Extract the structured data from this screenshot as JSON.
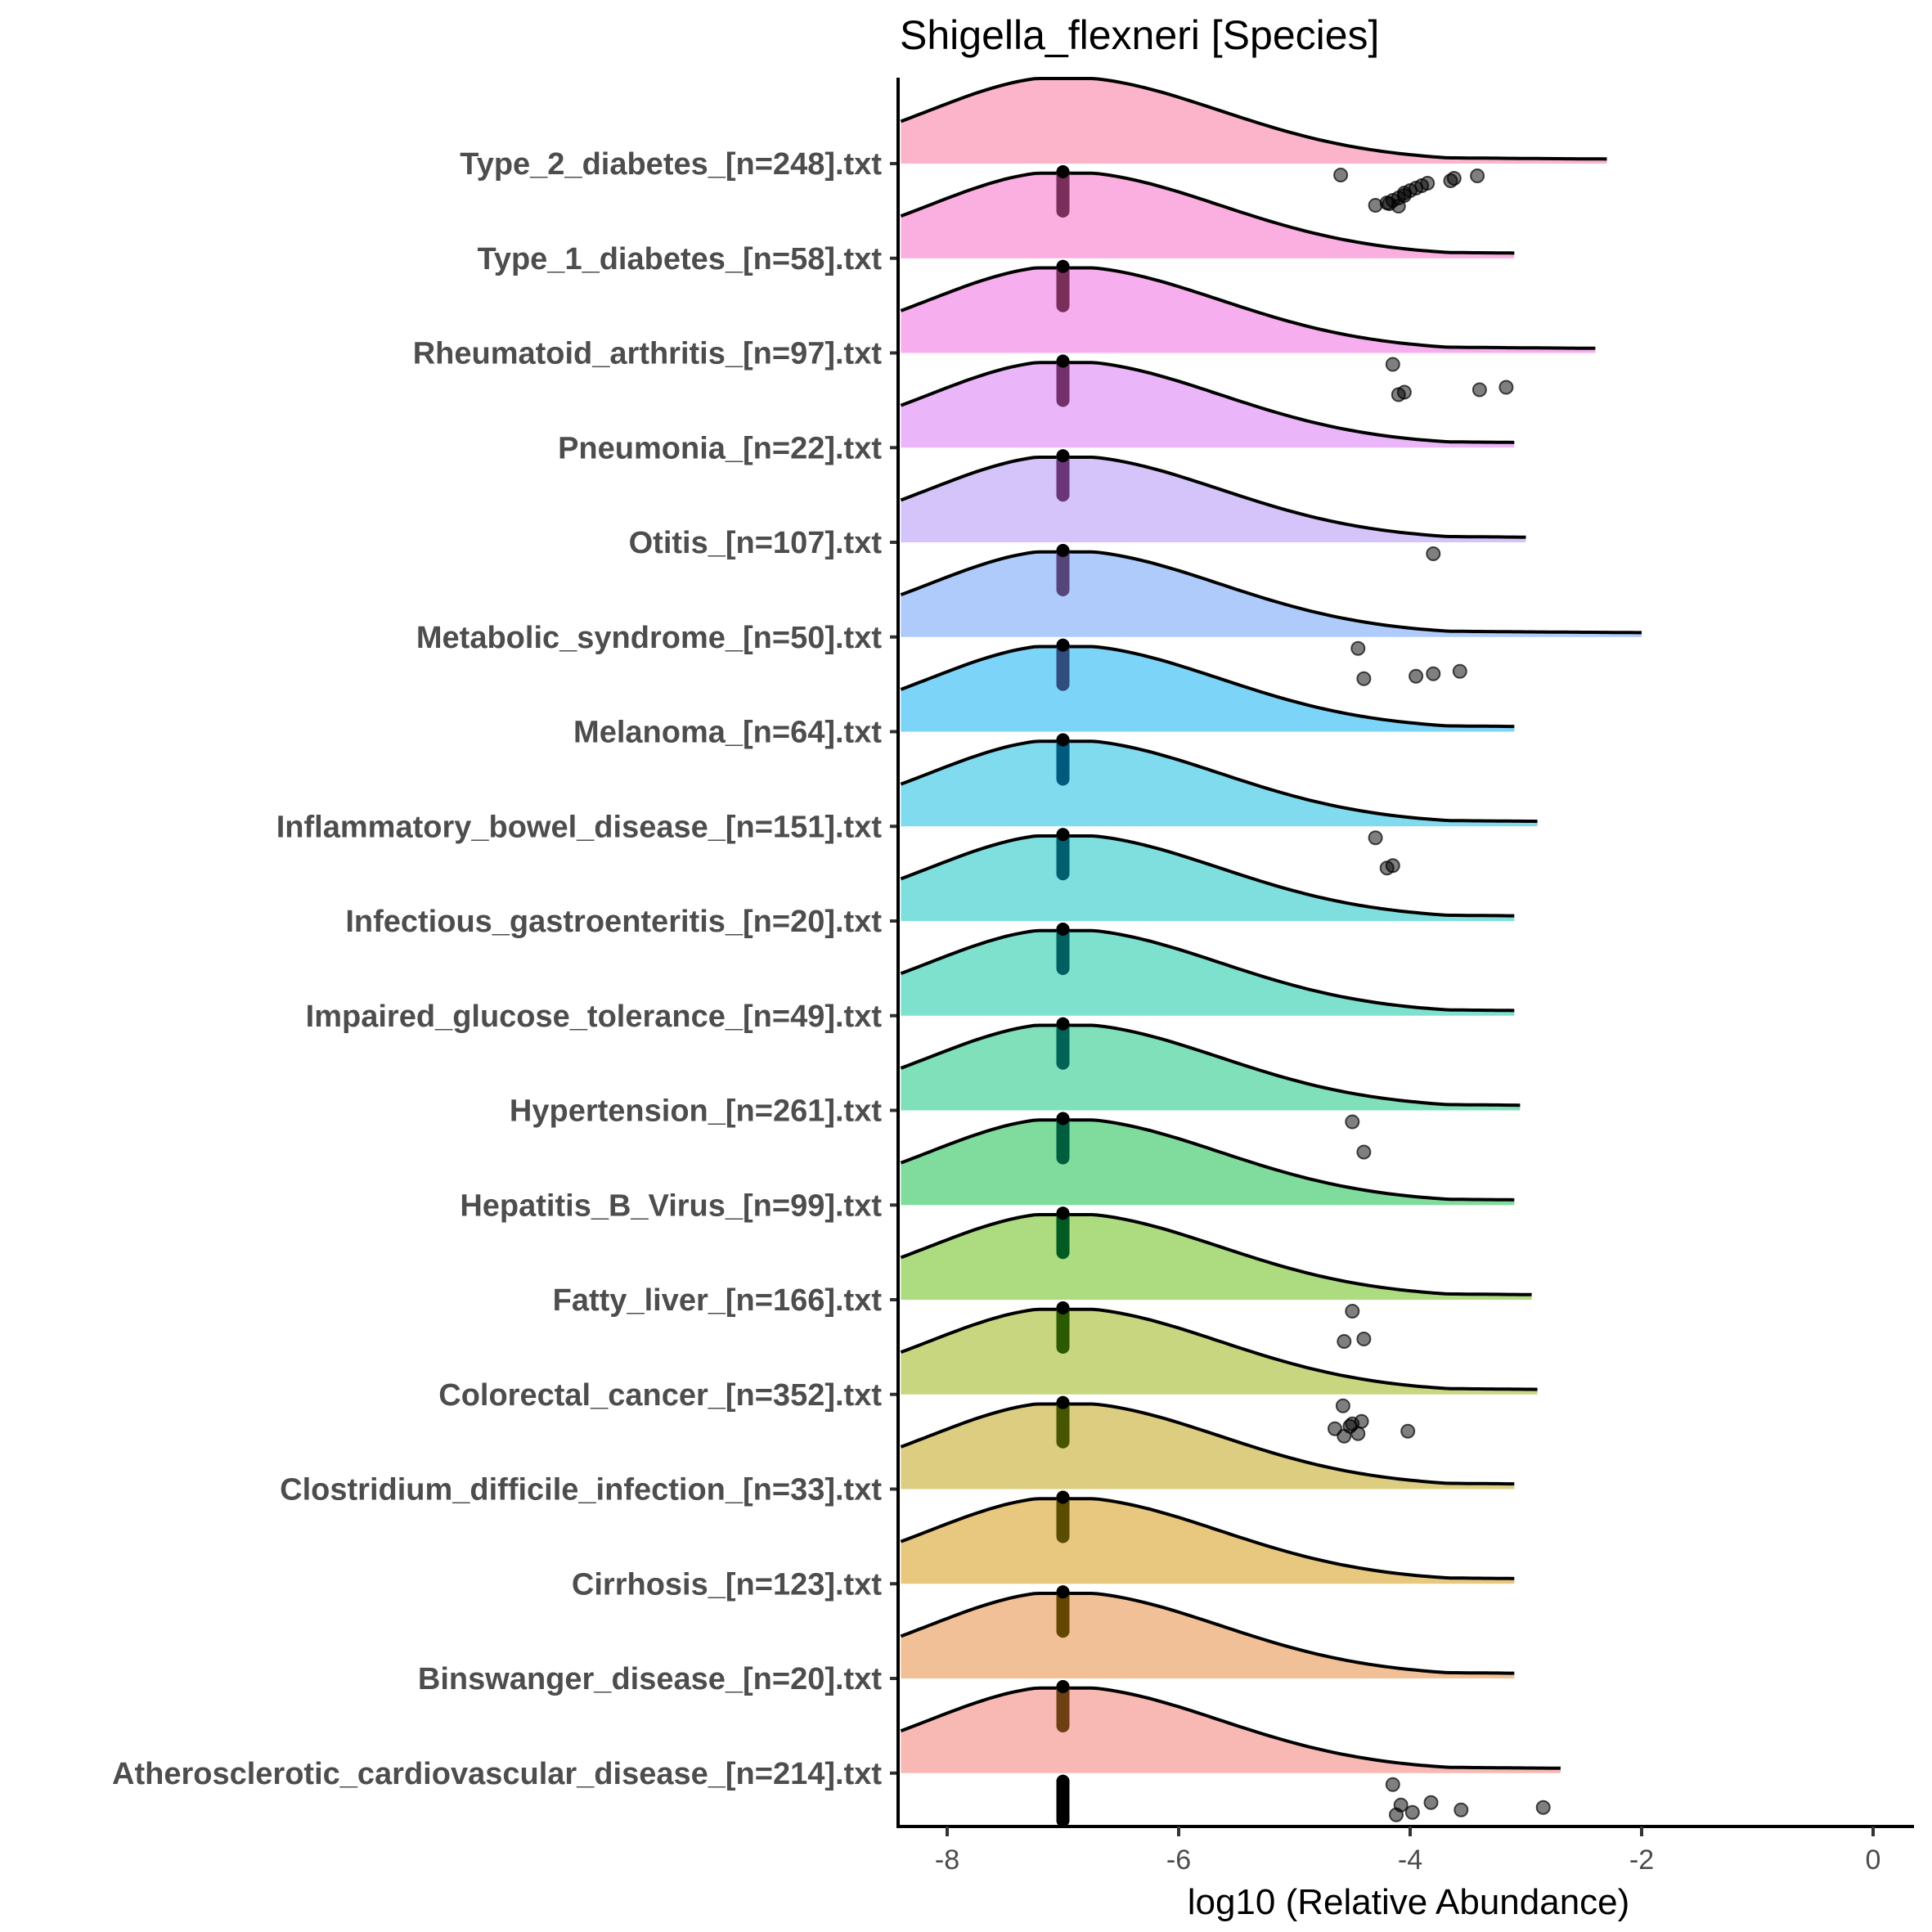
{
  "chart_data": {
    "type": "ridgeline",
    "title": "Shigella_flexneri [Species]",
    "xlabel": "log10 (Relative Abundance)",
    "ylabel": "",
    "xlim": [
      -8.4,
      0.5
    ],
    "x_ticks": [
      -8,
      -6,
      -4,
      -2,
      0
    ],
    "x_tick_labels": [
      "-8",
      "-6",
      "-4",
      "-2",
      "0"
    ],
    "grid": false,
    "legend": "none",
    "density_mode": -7,
    "series": [
      {
        "name": "Type_2_diabetes_[n=248].txt",
        "fill": "#fbb4c9",
        "line_color": "#7a2f5a",
        "tail_end": -2.3,
        "points": [
          -4.6,
          -4.3,
          -4.2,
          -4.15,
          -4.1,
          -4.05,
          -4.05,
          -4.0,
          -3.95,
          -3.9,
          -3.85,
          -3.65,
          -3.62,
          -3.42,
          -4.1,
          -4.18
        ]
      },
      {
        "name": "Type_1_diabetes_[n=58].txt",
        "fill": "#fbaee0",
        "line_color": "#7a2f5a",
        "tail_end": -3.1,
        "points": []
      },
      {
        "name": "Rheumatoid_arthritis_[n=97].txt",
        "fill": "#f7aeee",
        "line_color": "#73306d",
        "tail_end": -2.4,
        "points": [
          -4.15,
          -4.1,
          -4.05,
          -3.4,
          -3.17
        ]
      },
      {
        "name": "Pneumonia_[n=22].txt",
        "fill": "#ebb6f9",
        "line_color": "#6a3679",
        "tail_end": -3.1,
        "points": []
      },
      {
        "name": "Otitis_[n=107].txt",
        "fill": "#d4c4f9",
        "line_color": "#56457b",
        "tail_end": -3.0,
        "points": [
          -3.8
        ]
      },
      {
        "name": "Metabolic_syndrome_[n=50].txt",
        "fill": "#aecbfb",
        "line_color": "#2f4e7d",
        "tail_end": -2.0,
        "points": [
          -4.45,
          -4.4,
          -3.95,
          -3.8,
          -3.57
        ]
      },
      {
        "name": "Melanoma_[n=64].txt",
        "fill": "#7dd4f9",
        "line_color": "#005a7d",
        "tail_end": -3.1,
        "points": []
      },
      {
        "name": "Inflammatory_bowel_disease_[n=151].txt",
        "fill": "#80dbef",
        "line_color": "#005f6f",
        "tail_end": -2.9,
        "points": [
          -4.3,
          -4.2,
          -4.15
        ]
      },
      {
        "name": "Infectious_gastroenteritis_[n=20].txt",
        "fill": "#7fdfdf",
        "line_color": "#005f5f",
        "tail_end": -3.1,
        "points": []
      },
      {
        "name": "Impaired_glucose_tolerance_[n=49].txt",
        "fill": "#7de1ce",
        "line_color": "#006356",
        "tail_end": -3.1,
        "points": []
      },
      {
        "name": "Hypertension_[n=261].txt",
        "fill": "#7fe0b9",
        "line_color": "#005d3e",
        "tail_end": -3.05,
        "points": [
          -4.5,
          -4.4
        ]
      },
      {
        "name": "Hepatitis_B_Virus_[n=99].txt",
        "fill": "#80dc9d",
        "line_color": "#005a22",
        "tail_end": -3.1,
        "points": []
      },
      {
        "name": "Fatty_liver_[n=166].txt",
        "fill": "#addb7f",
        "line_color": "#2c5a00",
        "tail_end": -2.95,
        "points": [
          -4.5,
          -4.57,
          -4.4
        ]
      },
      {
        "name": "Colorectal_cancer_[n=352].txt",
        "fill": "#c8d67f",
        "line_color": "#475500",
        "tail_end": -2.9,
        "points": [
          -4.58,
          -4.57,
          -4.45,
          -4.02,
          -4.65,
          -4.52,
          -4.5,
          -4.42
        ]
      },
      {
        "name": "Clostridium_difficile_infection_[n=33].txt",
        "fill": "#dccd80",
        "line_color": "#5a4c00",
        "tail_end": -3.1,
        "points": []
      },
      {
        "name": "Cirrhosis_[n=123].txt",
        "fill": "#e8c87f",
        "line_color": "#654600",
        "tail_end": -3.1,
        "points": []
      },
      {
        "name": "Binswanger_disease_[n=20].txt",
        "fill": "#f2c096",
        "line_color": "#6f3f14",
        "tail_end": -3.1,
        "points": []
      },
      {
        "name": "Atherosclerotic_cardiovascular_disease_[n=214].txt",
        "fill": "#f8b9b4",
        "line_color": "#753a35",
        "tail_end": -2.7,
        "points": [
          -4.15,
          -4.12,
          -3.98,
          -3.56,
          -2.85,
          -4.08,
          -3.82
        ]
      }
    ]
  }
}
